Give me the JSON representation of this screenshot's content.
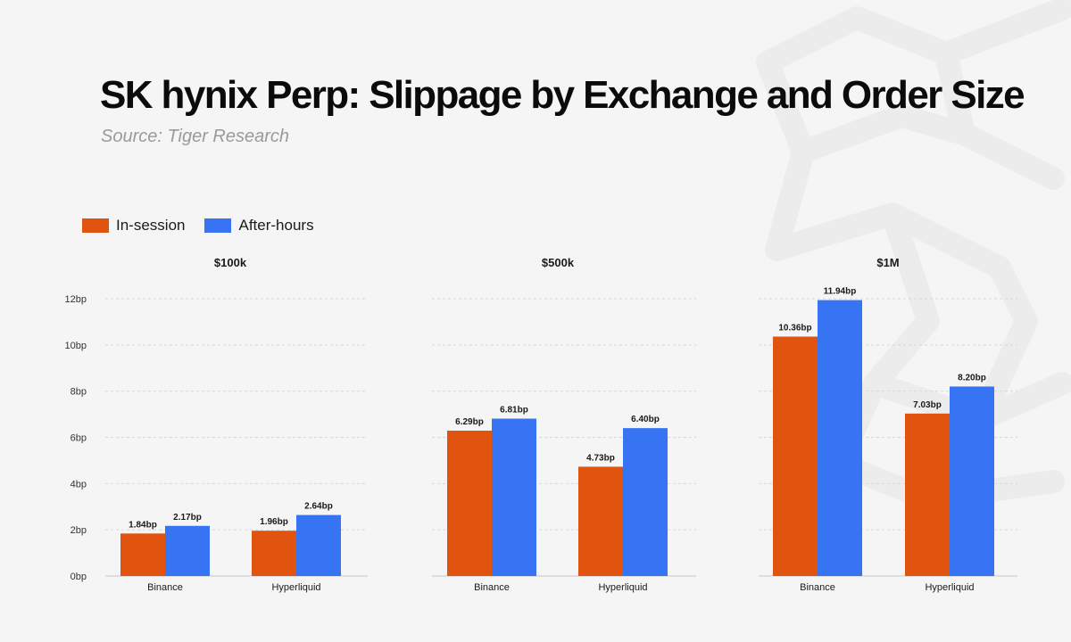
{
  "title": "SK hynix Perp: Slippage by Exchange and Order Size",
  "source": "Source: Tiger Research",
  "legend": [
    {
      "label": "In-session",
      "color": "#e0540f"
    },
    {
      "label": "After-hours",
      "color": "#3774f4"
    }
  ],
  "chart_data": {
    "type": "bar",
    "unit": "bp",
    "ylim": [
      0,
      12
    ],
    "yticks": [
      "0bp",
      "2bp",
      "4bp",
      "6bp",
      "8bp",
      "10bp",
      "12bp"
    ],
    "ytick_values": [
      0,
      2,
      4,
      6,
      8,
      10,
      12
    ],
    "grid": true,
    "legend_position": "top-left",
    "panels": [
      {
        "title": "$100k",
        "categories": [
          "Binance",
          "Hyperliquid"
        ],
        "series": [
          {
            "name": "In-session",
            "values": [
              1.84,
              1.96
            ],
            "labels": [
              "1.84bp",
              "1.96bp"
            ]
          },
          {
            "name": "After-hours",
            "values": [
              2.17,
              2.64
            ],
            "labels": [
              "2.17bp",
              "2.64bp"
            ]
          }
        ]
      },
      {
        "title": "$500k",
        "categories": [
          "Binance",
          "Hyperliquid"
        ],
        "series": [
          {
            "name": "In-session",
            "values": [
              6.29,
              4.73
            ],
            "labels": [
              "6.29bp",
              "4.73bp"
            ]
          },
          {
            "name": "After-hours",
            "values": [
              6.81,
              6.4
            ],
            "labels": [
              "6.81bp",
              "6.40bp"
            ]
          }
        ]
      },
      {
        "title": "$1M",
        "categories": [
          "Binance",
          "Hyperliquid"
        ],
        "series": [
          {
            "name": "In-session",
            "values": [
              10.36,
              7.03
            ],
            "labels": [
              "10.36bp",
              "7.03bp"
            ]
          },
          {
            "name": "After-hours",
            "values": [
              11.94,
              8.2
            ],
            "labels": [
              "11.94bp",
              "8.20bp"
            ]
          }
        ]
      }
    ]
  }
}
